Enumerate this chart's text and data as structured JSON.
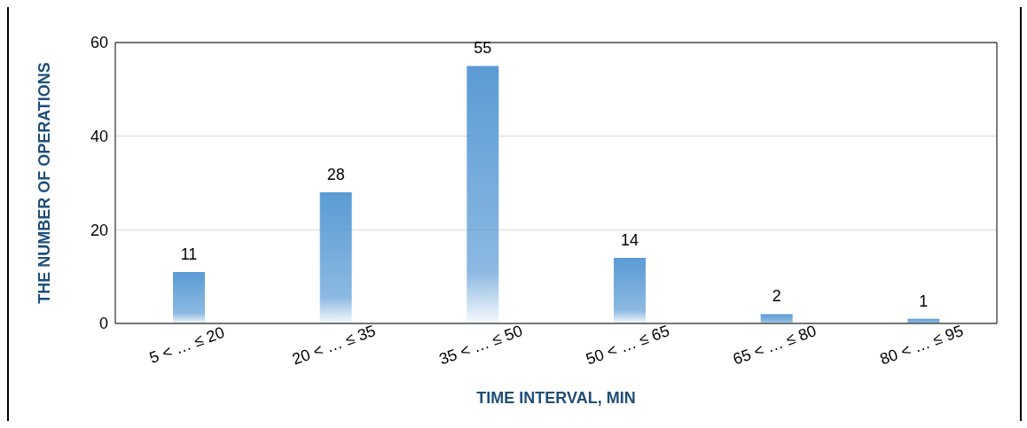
{
  "chart_data": {
    "type": "bar",
    "xlabel": "TIME INTERVAL, MIN",
    "ylabel": "THE NUMBER OF OPERATIONS",
    "categories": [
      "5 <  … ≤ 20",
      "20 <  … ≤ 35",
      "35 <  … ≤ 50",
      "50 <  … ≤ 65",
      "65 <  … ≤ 80",
      "80 <  … ≤ 95"
    ],
    "values": [
      11,
      28,
      55,
      14,
      2,
      1
    ],
    "color": "#5b9bd5",
    "ylim": [
      0,
      60
    ],
    "yticks": [
      0,
      20,
      40,
      60
    ],
    "grid": "y",
    "data_labels": true,
    "legend": false
  }
}
